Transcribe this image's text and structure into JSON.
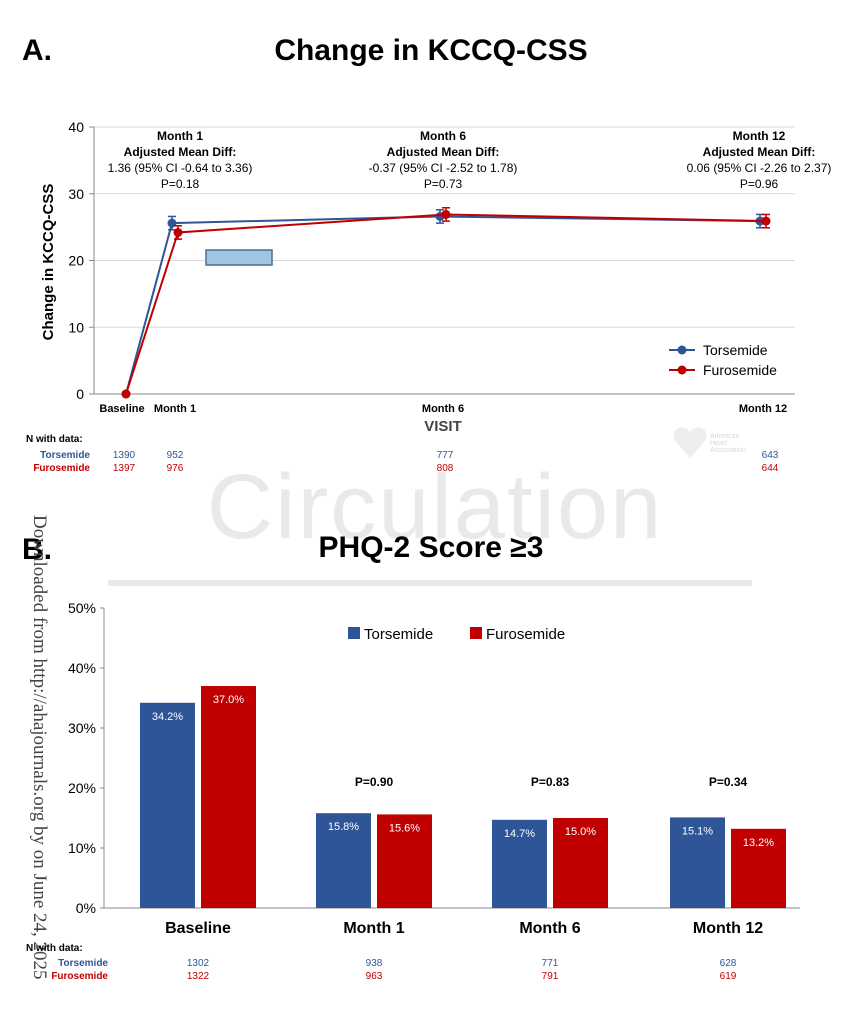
{
  "panel_a": {
    "label": "A.",
    "n_title": "N with data:",
    "n_rows": [
      {
        "name": "Torsemide",
        "color": "#2e5597",
        "values": [
          "1390",
          "952",
          "777",
          "643"
        ]
      },
      {
        "name": "Furosemide",
        "color": "#c00000",
        "values": [
          "1397",
          "976",
          "808",
          "644"
        ]
      }
    ],
    "annotations": [
      {
        "lines": [
          "Month 1",
          "Adjusted Mean Diff:",
          "1.36 (95% CI -0.64 to 3.36)",
          "P=0.18"
        ]
      },
      {
        "lines": [
          "Month 6",
          "Adjusted Mean Diff:",
          "-0.37 (95% CI -2.52 to 1.78)",
          "P=0.73"
        ]
      },
      {
        "lines": [
          "Month 12",
          "Adjusted Mean Diff:",
          "0.06 (95% CI -2.26 to 2.37)",
          "P=0.96"
        ]
      }
    ],
    "logo_text": [
      "American",
      "Heart",
      "Association"
    ]
  },
  "panel_b": {
    "label": "B.",
    "n_title": "N with data:",
    "n_rows": [
      {
        "name": "Torsemide",
        "color": "#2e5597",
        "values": [
          "1302",
          "938",
          "771",
          "628"
        ]
      },
      {
        "name": "Furosemide",
        "color": "#c00000",
        "values": [
          "1322",
          "963",
          "791",
          "619"
        ]
      }
    ],
    "pvalues": [
      "",
      "P=0.90",
      "P=0.83",
      "P=0.34"
    ]
  },
  "watermark": {
    "journal": "Circulation",
    "download_note": "Downloaded from http://ahajournals.org by on June 24, 2025"
  },
  "chart_data": [
    {
      "type": "line",
      "title": "Change in KCCQ-CSS",
      "xlabel": "VISIT",
      "ylabel": "Change in KCCQ-CSS",
      "categories": [
        "Baseline",
        "Month 1",
        "Month 6",
        "Month 12"
      ],
      "x": [
        0,
        1,
        6,
        12
      ],
      "ylim": [
        0,
        40
      ],
      "yticks": [
        0,
        10,
        20,
        30,
        40
      ],
      "grid": true,
      "legend_position": "bottom-right",
      "series": [
        {
          "name": "Torsemide",
          "color": "#2e5597",
          "values": [
            0,
            25.6,
            26.6,
            25.9
          ],
          "err": [
            0,
            1.0,
            1.0,
            1.0
          ]
        },
        {
          "name": "Furosemide",
          "color": "#c00000",
          "values": [
            0,
            24.2,
            26.9,
            25.9
          ],
          "err": [
            0,
            1.0,
            1.0,
            1.0
          ]
        }
      ]
    },
    {
      "type": "bar",
      "title": "PHQ-2 Score ≥3",
      "xlabel": "",
      "ylabel": "",
      "categories": [
        "Baseline",
        "Month 1",
        "Month 6",
        "Month 12"
      ],
      "ylim": [
        0,
        50
      ],
      "yticks": [
        "0%",
        "10%",
        "20%",
        "30%",
        "40%",
        "50%"
      ],
      "grid": false,
      "legend_position": "top-center",
      "series": [
        {
          "name": "Torsemide",
          "color": "#2e5597",
          "values": [
            34.2,
            15.8,
            14.7,
            15.1
          ],
          "labels": [
            "34.2%",
            "15.8%",
            "14.7%",
            "15.1%"
          ]
        },
        {
          "name": "Furosemide",
          "color": "#c00000",
          "values": [
            37.0,
            15.6,
            15.0,
            13.2
          ],
          "labels": [
            "37.0%",
            "15.6%",
            "15.0%",
            "13.2%"
          ]
        }
      ]
    }
  ]
}
